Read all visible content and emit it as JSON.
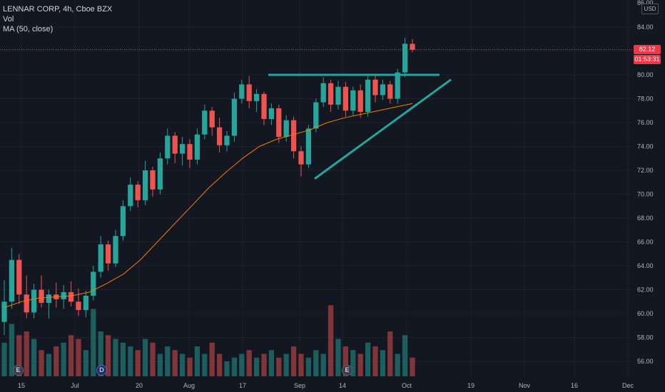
{
  "header": {
    "symbol_line": "LENNAR CORP, 4h, Cboe BZX",
    "volume_label": "Vol",
    "ma_label": "MA (50, close)",
    "currency": "USD"
  },
  "price_axis": {
    "top_partial_label": "86.00",
    "labels": [
      "84.00",
      "80.00",
      "78.00",
      "76.00",
      "74.00",
      "72.00",
      "70.00",
      "68.00",
      "66.00",
      "64.00",
      "62.00",
      "60.00",
      "58.00",
      "56.00"
    ],
    "current_price": "82.12",
    "countdown": "01:53:31"
  },
  "time_axis": {
    "labels": [
      "15",
      "Jul",
      "20",
      "Aug",
      "17",
      "Sep",
      "14",
      "Oct",
      "19",
      "Nov",
      "16",
      "Dec"
    ]
  },
  "events": [
    {
      "label": "E",
      "kind": "earnings"
    },
    {
      "label": "D",
      "kind": "dividend"
    },
    {
      "label": "E",
      "kind": "earnings"
    }
  ],
  "colors": {
    "background": "#131722",
    "up": "#26a69a",
    "down": "#ef5350",
    "ma": "#f57c00",
    "pattern": "#26a69a",
    "price_line": "#f23645"
  },
  "chart_data": {
    "type": "candlestick",
    "timeframe": "4h",
    "y_range": [
      55,
      86
    ],
    "current_price": 82.12,
    "moving_average": {
      "name": "MA (50, close)",
      "values": [
        60.5,
        61.0,
        61.3,
        61.4,
        61.5,
        61.8,
        62.5,
        63.3,
        64.5,
        66.0,
        67.5,
        69.0,
        70.5,
        71.8,
        73.0,
        74.0,
        74.6,
        75.0,
        75.4,
        76.0,
        76.4,
        76.7,
        77.0,
        77.3,
        77.6
      ]
    },
    "ohlc": [
      [
        59.3,
        62.8,
        58.2,
        61.0
      ],
      [
        61.0,
        65.5,
        60.4,
        64.5
      ],
      [
        64.5,
        65.0,
        60.8,
        61.6
      ],
      [
        61.6,
        63.2,
        59.6,
        60.1
      ],
      [
        60.1,
        62.5,
        59.6,
        62.0
      ],
      [
        62.0,
        63.2,
        60.5,
        60.9
      ],
      [
        60.9,
        62.0,
        59.6,
        61.6
      ],
      [
        61.6,
        62.6,
        60.5,
        61.2
      ],
      [
        61.2,
        62.4,
        60.4,
        61.8
      ],
      [
        61.8,
        62.7,
        60.6,
        61.0
      ],
      [
        61.0,
        62.1,
        59.8,
        60.3
      ],
      [
        60.3,
        61.9,
        59.7,
        61.5
      ],
      [
        61.5,
        64.0,
        61.1,
        63.5
      ],
      [
        63.5,
        66.5,
        63.0,
        65.8
      ],
      [
        65.8,
        66.1,
        63.6,
        64.2
      ],
      [
        64.2,
        67.0,
        63.9,
        66.5
      ],
      [
        66.5,
        69.5,
        66.1,
        69.0
      ],
      [
        69.0,
        71.4,
        68.6,
        70.8
      ],
      [
        70.8,
        71.1,
        68.9,
        69.5
      ],
      [
        69.5,
        72.8,
        69.1,
        72.0
      ],
      [
        72.0,
        72.3,
        69.8,
        70.4
      ],
      [
        70.4,
        73.5,
        70.0,
        73.0
      ],
      [
        73.0,
        75.5,
        72.5,
        74.9
      ],
      [
        74.9,
        75.2,
        72.6,
        73.4
      ],
      [
        73.4,
        74.8,
        72.4,
        74.2
      ],
      [
        74.2,
        74.6,
        72.2,
        72.9
      ],
      [
        72.9,
        75.5,
        72.5,
        75.0
      ],
      [
        75.0,
        77.5,
        74.6,
        77.0
      ],
      [
        77.0,
        77.3,
        74.9,
        75.6
      ],
      [
        75.6,
        76.4,
        73.5,
        74.1
      ],
      [
        74.1,
        75.3,
        73.6,
        74.9
      ],
      [
        74.9,
        78.5,
        74.4,
        78.0
      ],
      [
        78.0,
        79.6,
        77.6,
        79.2
      ],
      [
        79.2,
        79.9,
        77.2,
        77.8
      ],
      [
        77.8,
        78.8,
        76.9,
        78.4
      ],
      [
        78.4,
        78.6,
        75.8,
        76.3
      ],
      [
        76.3,
        77.6,
        75.8,
        77.2
      ],
      [
        77.2,
        77.5,
        74.3,
        74.8
      ],
      [
        74.8,
        76.6,
        74.4,
        76.2
      ],
      [
        76.2,
        76.5,
        73.0,
        73.6
      ],
      [
        73.6,
        74.0,
        71.5,
        72.5
      ],
      [
        72.5,
        75.8,
        72.2,
        75.5
      ],
      [
        75.5,
        78.0,
        75.2,
        77.7
      ],
      [
        77.7,
        79.8,
        77.3,
        79.3
      ],
      [
        79.3,
        79.6,
        76.9,
        77.5
      ],
      [
        77.5,
        79.5,
        77.1,
        79.0
      ],
      [
        79.0,
        79.4,
        76.5,
        77.0
      ],
      [
        77.0,
        79.0,
        76.6,
        78.7
      ],
      [
        78.7,
        79.2,
        76.4,
        76.9
      ],
      [
        76.9,
        79.9,
        76.5,
        79.6
      ],
      [
        79.6,
        80.0,
        77.7,
        78.3
      ],
      [
        78.3,
        79.6,
        77.9,
        79.2
      ],
      [
        79.2,
        79.5,
        77.6,
        78.0
      ],
      [
        78.0,
        80.5,
        77.6,
        80.2
      ],
      [
        80.2,
        83.1,
        79.8,
        82.6
      ],
      [
        82.6,
        83.0,
        81.9,
        82.1
      ]
    ],
    "volume_relative": [
      0.45,
      0.7,
      0.55,
      0.6,
      0.5,
      0.35,
      0.3,
      0.4,
      0.45,
      0.55,
      0.5,
      0.35,
      0.9,
      0.6,
      0.55,
      0.5,
      0.45,
      0.4,
      0.35,
      0.5,
      0.45,
      0.3,
      0.4,
      0.35,
      0.3,
      0.25,
      0.4,
      0.3,
      0.45,
      0.3,
      0.2,
      0.25,
      0.3,
      0.35,
      0.25,
      0.3,
      0.35,
      0.25,
      0.3,
      0.4,
      0.3,
      0.25,
      0.35,
      0.3,
      0.95,
      0.5,
      0.4,
      0.35,
      0.3,
      0.45,
      0.4,
      0.35,
      0.6,
      0.3,
      0.55,
      0.25
    ],
    "annotations": [
      {
        "kind": "horizontal resistance",
        "price": 80.0
      },
      {
        "kind": "rising trendline",
        "from_price": 71.3,
        "to_price": 79.6
      }
    ]
  }
}
